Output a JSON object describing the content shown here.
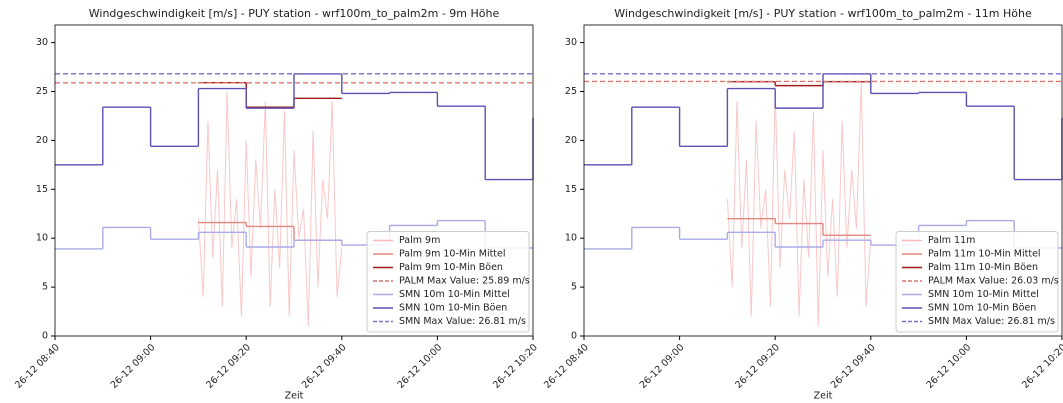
{
  "chart_data": [
    {
      "type": "line",
      "title": "Windgeschwindigkeit [m/s] - PUY station - wrf100m_to_palm2m - 9m Höhe",
      "xlabel": "Zeit",
      "xlim": [
        "26-12 08:40",
        "26-12 10:20"
      ],
      "xticks": [
        "26-12 08:40",
        "26-12 09:00",
        "26-12 09:20",
        "26-12 09:40",
        "26-12 10:00",
        "26-12 10:20"
      ],
      "ylim": [
        0,
        31.8
      ],
      "yticks": [
        0,
        5,
        10,
        15,
        20,
        25,
        30
      ],
      "legend": "lower right",
      "series": [
        {
          "name": "Palm 9m",
          "color": "#f7b9b9",
          "kind": "line",
          "x": [
            "26-12 09:10",
            "26-12 09:11",
            "26-12 09:12",
            "26-12 09:13",
            "26-12 09:14",
            "26-12 09:15",
            "26-12 09:16",
            "26-12 09:17",
            "26-12 09:18",
            "26-12 09:19",
            "26-12 09:20",
            "26-12 09:21",
            "26-12 09:22",
            "26-12 09:23",
            "26-12 09:24",
            "26-12 09:25",
            "26-12 09:26",
            "26-12 09:27",
            "26-12 09:28",
            "26-12 09:29",
            "26-12 09:30",
            "26-12 09:31",
            "26-12 09:32",
            "26-12 09:33",
            "26-12 09:34",
            "26-12 09:35",
            "26-12 09:36",
            "26-12 09:37",
            "26-12 09:38",
            "26-12 09:39",
            "26-12 09:40"
          ],
          "values": [
            12,
            4,
            22,
            8,
            17,
            3,
            25,
            9,
            14,
            2,
            20,
            6,
            18,
            11,
            24,
            3,
            15,
            7,
            23,
            2,
            19,
            10,
            13,
            1,
            21,
            5,
            16,
            12,
            24,
            4,
            9
          ]
        },
        {
          "name": "Palm 9m 10-Min Mittel",
          "color": "#e2877f",
          "kind": "step",
          "x": [
            "26-12 09:10",
            "26-12 09:20",
            "26-12 09:30",
            "26-12 09:40"
          ],
          "values": [
            11.6,
            11.2,
            9.8,
            9.8
          ]
        },
        {
          "name": "Palm 9m 10-Min Böen",
          "color": "#a31818",
          "kind": "step",
          "x": [
            "26-12 09:10",
            "26-12 09:20",
            "26-12 09:30",
            "26-12 09:40"
          ],
          "values": [
            25.9,
            23.4,
            24.3,
            24.3
          ]
        },
        {
          "name": "PALM Max Value: 25.89 m/s",
          "color": "#d9776e",
          "kind": "hline",
          "values": [
            25.89
          ]
        },
        {
          "name": "SMN 10m 10-Min Mittel",
          "color": "#aaaaea",
          "kind": "step",
          "x": [
            "26-12 08:40",
            "26-12 08:50",
            "26-12 09:00",
            "26-12 09:10",
            "26-12 09:20",
            "26-12 09:30",
            "26-12 09:40",
            "26-12 09:50",
            "26-12 10:00",
            "26-12 10:10",
            "26-12 10:20"
          ],
          "values": [
            8.9,
            11.1,
            9.9,
            10.6,
            9.1,
            9.8,
            9.3,
            11.3,
            11.8,
            9.0,
            9.0
          ]
        },
        {
          "name": "SMN 10m 10-Min Böen",
          "color": "#5a50b2",
          "kind": "step",
          "x": [
            "26-12 08:40",
            "26-12 08:50",
            "26-12 09:00",
            "26-12 09:10",
            "26-12 09:20",
            "26-12 09:30",
            "26-12 09:40",
            "26-12 09:50",
            "26-12 10:00",
            "26-12 10:10",
            "26-12 10:20"
          ],
          "values": [
            17.5,
            23.4,
            19.4,
            25.3,
            23.3,
            26.8,
            24.8,
            24.9,
            23.5,
            16.0,
            22.3
          ]
        },
        {
          "name": "SMN Max Value: 26.81 m/s",
          "color": "#7a70c8",
          "kind": "hline",
          "values": [
            26.81
          ]
        }
      ]
    },
    {
      "type": "line",
      "title": "Windgeschwindigkeit [m/s] - PUY station - wrf100m_to_palm2m - 11m Höhe",
      "xlabel": "Zeit",
      "xlim": [
        "26-12 08:40",
        "26-12 10:20"
      ],
      "xticks": [
        "26-12 08:40",
        "26-12 09:00",
        "26-12 09:20",
        "26-12 09:40",
        "26-12 10:00",
        "26-12 10:20"
      ],
      "ylim": [
        0,
        31.8
      ],
      "yticks": [
        0,
        5,
        10,
        15,
        20,
        25,
        30
      ],
      "legend": "lower right",
      "series": [
        {
          "name": "Palm 11m",
          "color": "#f7b9b9",
          "kind": "line",
          "x": [
            "26-12 09:10",
            "26-12 09:11",
            "26-12 09:12",
            "26-12 09:13",
            "26-12 09:14",
            "26-12 09:15",
            "26-12 09:16",
            "26-12 09:17",
            "26-12 09:18",
            "26-12 09:19",
            "26-12 09:20",
            "26-12 09:21",
            "26-12 09:22",
            "26-12 09:23",
            "26-12 09:24",
            "26-12 09:25",
            "26-12 09:26",
            "26-12 09:27",
            "26-12 09:28",
            "26-12 09:29",
            "26-12 09:30",
            "26-12 09:31",
            "26-12 09:32",
            "26-12 09:33",
            "26-12 09:34",
            "26-12 09:35",
            "26-12 09:36",
            "26-12 09:37",
            "26-12 09:38",
            "26-12 09:39",
            "26-12 09:40"
          ],
          "values": [
            14,
            5,
            24,
            9,
            18,
            2,
            22,
            11,
            15,
            3,
            25,
            7,
            17,
            12,
            21,
            2,
            16,
            8,
            23,
            1,
            19,
            6,
            14,
            4,
            22,
            9,
            17,
            11,
            26,
            3,
            10
          ]
        },
        {
          "name": "Palm 11m 10-Min Mittel",
          "color": "#e2877f",
          "kind": "step",
          "x": [
            "26-12 09:10",
            "26-12 09:20",
            "26-12 09:30",
            "26-12 09:40"
          ],
          "values": [
            12.0,
            11.5,
            10.3,
            10.3
          ]
        },
        {
          "name": "Palm 11m 10-Min Böen",
          "color": "#a31818",
          "kind": "step",
          "x": [
            "26-12 09:10",
            "26-12 09:20",
            "26-12 09:30",
            "26-12 09:40"
          ],
          "values": [
            26.0,
            25.6,
            26.0,
            26.0
          ]
        },
        {
          "name": "PALM Max Value: 26.03 m/s",
          "color": "#d9776e",
          "kind": "hline",
          "values": [
            26.03
          ]
        },
        {
          "name": "SMN 10m 10-Min Mittel",
          "color": "#aaaaea",
          "kind": "step",
          "x": [
            "26-12 08:40",
            "26-12 08:50",
            "26-12 09:00",
            "26-12 09:10",
            "26-12 09:20",
            "26-12 09:30",
            "26-12 09:40",
            "26-12 09:50",
            "26-12 10:00",
            "26-12 10:10",
            "26-12 10:20"
          ],
          "values": [
            8.9,
            11.1,
            9.9,
            10.6,
            9.1,
            9.8,
            9.3,
            11.3,
            11.8,
            9.0,
            9.0
          ]
        },
        {
          "name": "SMN 10m 10-Min Böen",
          "color": "#5a50b2",
          "kind": "step",
          "x": [
            "26-12 08:40",
            "26-12 08:50",
            "26-12 09:00",
            "26-12 09:10",
            "26-12 09:20",
            "26-12 09:30",
            "26-12 09:40",
            "26-12 09:50",
            "26-12 10:00",
            "26-12 10:10",
            "26-12 10:20"
          ],
          "values": [
            17.5,
            23.4,
            19.4,
            25.3,
            23.3,
            26.8,
            24.8,
            24.9,
            23.5,
            16.0,
            22.3
          ]
        },
        {
          "name": "SMN Max Value: 26.81 m/s",
          "color": "#7a70c8",
          "kind": "hline",
          "values": [
            26.81
          ]
        }
      ]
    }
  ]
}
